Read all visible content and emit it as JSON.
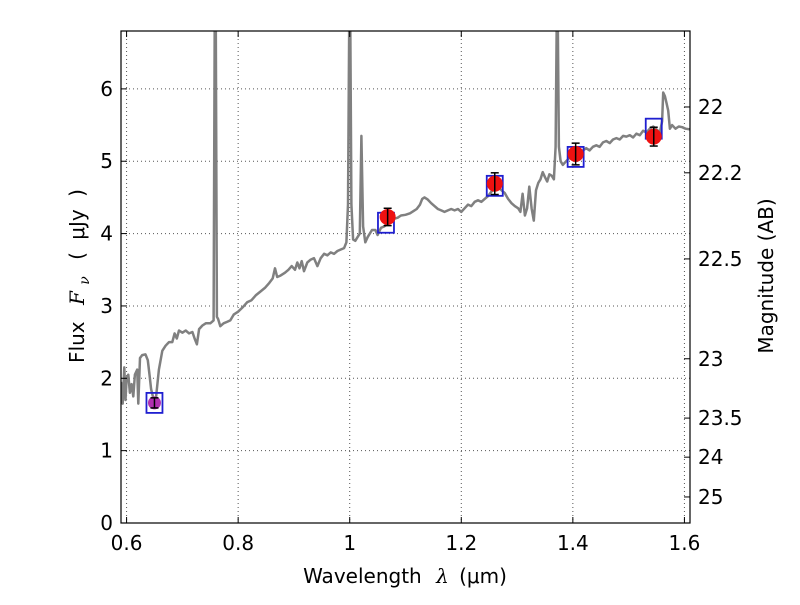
{
  "chart_data": {
    "type": "line",
    "xlabel": {
      "text": "Wavelength",
      "symbol": "λ",
      "unit": "(μm)"
    },
    "ylabel": {
      "text": "Flux",
      "symbol": "F",
      "subscript": "ν",
      "unit_open": "(",
      "unit": "μJy",
      "unit_close": ")"
    },
    "y2label": "Magnitude (AB)",
    "xlim": [
      0.59,
      1.61
    ],
    "ylim": [
      0,
      6.8
    ],
    "grid": true,
    "grid_style": "dotted",
    "x_ticks": [
      {
        "value": 0.6,
        "label": "0.6"
      },
      {
        "value": 0.8,
        "label": "0.8"
      },
      {
        "value": 1.0,
        "label": "1"
      },
      {
        "value": 1.2,
        "label": "1.2"
      },
      {
        "value": 1.4,
        "label": "1.4"
      },
      {
        "value": 1.6,
        "label": "1.6"
      }
    ],
    "y_ticks": [
      {
        "value": 0,
        "label": "0"
      },
      {
        "value": 1,
        "label": "1"
      },
      {
        "value": 2,
        "label": "2"
      },
      {
        "value": 3,
        "label": "3"
      },
      {
        "value": 4,
        "label": "4"
      },
      {
        "value": 5,
        "label": "5"
      },
      {
        "value": 6,
        "label": "6"
      }
    ],
    "y2_ticks": [
      {
        "flux": 5.75,
        "label": "22"
      },
      {
        "flux": 4.84,
        "label": "22.2"
      },
      {
        "flux": 3.65,
        "label": "22.5"
      },
      {
        "flux": 2.27,
        "label": "23"
      },
      {
        "flux": 1.45,
        "label": "23.5"
      },
      {
        "flux": 0.91,
        "label": "24"
      },
      {
        "flux": 0.36,
        "label": "25"
      }
    ],
    "colors": {
      "spectrum": "#808080",
      "model_box": "#1f1fd0",
      "observed": "#ee1111",
      "observed_first": "#b030b0",
      "errorbar": "#000000",
      "grid": "#555555"
    },
    "spectrum": [
      [
        0.59,
        1.95
      ],
      [
        0.593,
        1.65
      ],
      [
        0.596,
        2.15
      ],
      [
        0.598,
        1.7
      ],
      [
        0.6,
        2.0
      ],
      [
        0.603,
        2.05
      ],
      [
        0.606,
        1.8
      ],
      [
        0.609,
        1.92
      ],
      [
        0.612,
        1.75
      ],
      [
        0.615,
        2.05
      ],
      [
        0.619,
        2.12
      ],
      [
        0.621,
        1.65
      ],
      [
        0.624,
        2.28
      ],
      [
        0.628,
        2.32
      ],
      [
        0.634,
        2.33
      ],
      [
        0.638,
        2.25
      ],
      [
        0.641,
        2.05
      ],
      [
        0.644,
        1.85
      ],
      [
        0.648,
        1.72
      ],
      [
        0.652,
        1.68
      ],
      [
        0.658,
        2.12
      ],
      [
        0.664,
        2.38
      ],
      [
        0.67,
        2.45
      ],
      [
        0.676,
        2.5
      ],
      [
        0.682,
        2.5
      ],
      [
        0.686,
        2.62
      ],
      [
        0.69,
        2.55
      ],
      [
        0.694,
        2.66
      ],
      [
        0.7,
        2.63
      ],
      [
        0.706,
        2.66
      ],
      [
        0.712,
        2.62
      ],
      [
        0.718,
        2.64
      ],
      [
        0.722,
        2.55
      ],
      [
        0.726,
        2.47
      ],
      [
        0.73,
        2.68
      ],
      [
        0.736,
        2.73
      ],
      [
        0.742,
        2.76
      ],
      [
        0.75,
        2.76
      ],
      [
        0.756,
        2.8
      ],
      [
        0.758,
        6.9
      ],
      [
        0.76,
        6.9
      ],
      [
        0.762,
        2.85
      ],
      [
        0.764,
        2.82
      ],
      [
        0.768,
        2.72
      ],
      [
        0.774,
        2.76
      ],
      [
        0.78,
        2.78
      ],
      [
        0.786,
        2.8
      ],
      [
        0.792,
        2.88
      ],
      [
        0.8,
        2.92
      ],
      [
        0.808,
        2.98
      ],
      [
        0.816,
        3.05
      ],
      [
        0.824,
        3.08
      ],
      [
        0.832,
        3.15
      ],
      [
        0.84,
        3.2
      ],
      [
        0.848,
        3.25
      ],
      [
        0.856,
        3.32
      ],
      [
        0.862,
        3.38
      ],
      [
        0.866,
        3.52
      ],
      [
        0.87,
        3.4
      ],
      [
        0.876,
        3.42
      ],
      [
        0.884,
        3.46
      ],
      [
        0.89,
        3.5
      ],
      [
        0.896,
        3.55
      ],
      [
        0.902,
        3.5
      ],
      [
        0.906,
        3.6
      ],
      [
        0.91,
        3.52
      ],
      [
        0.914,
        3.62
      ],
      [
        0.918,
        3.48
      ],
      [
        0.924,
        3.6
      ],
      [
        0.93,
        3.64
      ],
      [
        0.936,
        3.66
      ],
      [
        0.942,
        3.55
      ],
      [
        0.948,
        3.66
      ],
      [
        0.954,
        3.72
      ],
      [
        0.96,
        3.7
      ],
      [
        0.966,
        3.74
      ],
      [
        0.972,
        3.72
      ],
      [
        0.978,
        3.76
      ],
      [
        0.984,
        3.78
      ],
      [
        0.99,
        3.8
      ],
      [
        0.994,
        3.88
      ],
      [
        0.997,
        4.4
      ],
      [
        0.999,
        6.9
      ],
      [
        1.001,
        6.9
      ],
      [
        1.003,
        4.4
      ],
      [
        1.006,
        3.92
      ],
      [
        1.01,
        3.9
      ],
      [
        1.014,
        3.95
      ],
      [
        1.018,
        4.0
      ],
      [
        1.021,
        5.35
      ],
      [
        1.024,
        4.1
      ],
      [
        1.028,
        3.88
      ],
      [
        1.032,
        3.95
      ],
      [
        1.04,
        4.05
      ],
      [
        1.046,
        4.05
      ],
      [
        1.05,
        3.98
      ],
      [
        1.056,
        4.08
      ],
      [
        1.062,
        4.1
      ],
      [
        1.07,
        4.15
      ],
      [
        1.078,
        4.2
      ],
      [
        1.086,
        4.22
      ],
      [
        1.092,
        4.25
      ],
      [
        1.1,
        4.26
      ],
      [
        1.108,
        4.28
      ],
      [
        1.114,
        4.31
      ],
      [
        1.12,
        4.34
      ],
      [
        1.126,
        4.4
      ],
      [
        1.13,
        4.48
      ],
      [
        1.134,
        4.5
      ],
      [
        1.14,
        4.47
      ],
      [
        1.146,
        4.42
      ],
      [
        1.152,
        4.38
      ],
      [
        1.158,
        4.34
      ],
      [
        1.164,
        4.32
      ],
      [
        1.17,
        4.3
      ],
      [
        1.176,
        4.32
      ],
      [
        1.182,
        4.34
      ],
      [
        1.188,
        4.32
      ],
      [
        1.194,
        4.34
      ],
      [
        1.2,
        4.3
      ],
      [
        1.206,
        4.35
      ],
      [
        1.212,
        4.4
      ],
      [
        1.218,
        4.38
      ],
      [
        1.224,
        4.44
      ],
      [
        1.23,
        4.46
      ],
      [
        1.236,
        4.44
      ],
      [
        1.242,
        4.48
      ],
      [
        1.248,
        4.52
      ],
      [
        1.254,
        4.58
      ],
      [
        1.26,
        4.62
      ],
      [
        1.266,
        4.65
      ],
      [
        1.272,
        4.6
      ],
      [
        1.278,
        4.56
      ],
      [
        1.284,
        4.48
      ],
      [
        1.29,
        4.42
      ],
      [
        1.296,
        4.38
      ],
      [
        1.302,
        4.35
      ],
      [
        1.306,
        4.3
      ],
      [
        1.31,
        4.55
      ],
      [
        1.314,
        4.25
      ],
      [
        1.318,
        4.35
      ],
      [
        1.322,
        4.65
      ],
      [
        1.326,
        4.35
      ],
      [
        1.33,
        4.18
      ],
      [
        1.334,
        4.6
      ],
      [
        1.338,
        4.7
      ],
      [
        1.342,
        4.75
      ],
      [
        1.346,
        4.85
      ],
      [
        1.35,
        4.78
      ],
      [
        1.354,
        4.72
      ],
      [
        1.358,
        4.82
      ],
      [
        1.362,
        4.8
      ],
      [
        1.366,
        4.75
      ],
      [
        1.369,
        5.2
      ],
      [
        1.371,
        6.9
      ],
      [
        1.373,
        6.9
      ],
      [
        1.375,
        5.2
      ],
      [
        1.378,
        5.0
      ],
      [
        1.382,
        4.95
      ],
      [
        1.388,
        5.0
      ],
      [
        1.394,
        5.05
      ],
      [
        1.4,
        5.08
      ],
      [
        1.406,
        5.1
      ],
      [
        1.412,
        5.12
      ],
      [
        1.418,
        5.15
      ],
      [
        1.424,
        5.18
      ],
      [
        1.43,
        5.15
      ],
      [
        1.436,
        5.2
      ],
      [
        1.442,
        5.22
      ],
      [
        1.448,
        5.2
      ],
      [
        1.454,
        5.26
      ],
      [
        1.46,
        5.28
      ],
      [
        1.466,
        5.25
      ],
      [
        1.472,
        5.3
      ],
      [
        1.478,
        5.32
      ],
      [
        1.484,
        5.3
      ],
      [
        1.49,
        5.35
      ],
      [
        1.496,
        5.34
      ],
      [
        1.502,
        5.36
      ],
      [
        1.508,
        5.33
      ],
      [
        1.514,
        5.38
      ],
      [
        1.52,
        5.36
      ],
      [
        1.526,
        5.42
      ],
      [
        1.532,
        5.4
      ],
      [
        1.538,
        5.45
      ],
      [
        1.544,
        5.48
      ],
      [
        1.55,
        5.44
      ],
      [
        1.556,
        5.4
      ],
      [
        1.56,
        5.55
      ],
      [
        1.562,
        5.95
      ],
      [
        1.565,
        5.9
      ],
      [
        1.568,
        5.8
      ],
      [
        1.571,
        5.7
      ],
      [
        1.574,
        5.45
      ],
      [
        1.578,
        5.5
      ],
      [
        1.584,
        5.45
      ],
      [
        1.59,
        5.48
      ],
      [
        1.596,
        5.47
      ],
      [
        1.602,
        5.45
      ],
      [
        1.61,
        5.44
      ]
    ],
    "model_boxes": [
      {
        "x": 0.65,
        "y": 1.66
      },
      {
        "x": 1.065,
        "y": 4.15
      },
      {
        "x": 1.26,
        "y": 4.66
      },
      {
        "x": 1.405,
        "y": 5.06
      },
      {
        "x": 1.545,
        "y": 5.45
      }
    ],
    "observed": [
      {
        "x": 0.65,
        "y": 1.66,
        "err": 0.07
      },
      {
        "x": 1.068,
        "y": 4.23,
        "err": 0.12
      },
      {
        "x": 1.26,
        "y": 4.69,
        "err": 0.15
      },
      {
        "x": 1.405,
        "y": 5.1,
        "err": 0.15
      },
      {
        "x": 1.545,
        "y": 5.34,
        "err": 0.13
      }
    ]
  }
}
